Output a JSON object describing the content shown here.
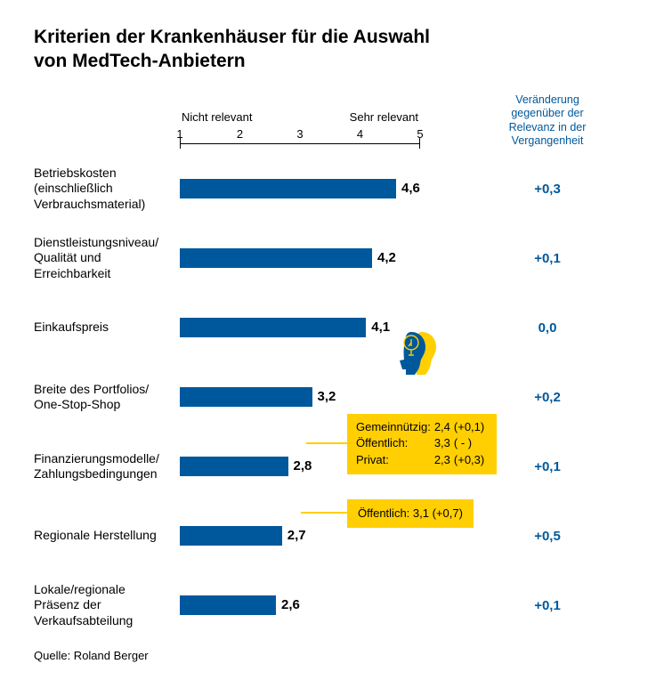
{
  "title_line1": "Kriterien der Krankenhäuser für die Auswahl",
  "title_line2": "von MedTech-Anbietern",
  "axis": {
    "left_label": "Nicht relevant",
    "right_label": "Sehr relevant",
    "min": 1,
    "max": 5,
    "ticks": [
      "1",
      "2",
      "3",
      "4",
      "5"
    ]
  },
  "change_header_l1": "Veränderung",
  "change_header_l2": "gegenüber der",
  "change_header_l3": "Relevanz in der",
  "change_header_l4": "Vergangenheit",
  "bar_color": "#00589c",
  "accent_color": "#ffcf01",
  "rows": [
    {
      "label": "Betriebskosten (einschließlich Verbrauchsmaterial)",
      "value": 4.6,
      "value_str": "4,6",
      "change": "+0,3"
    },
    {
      "label": "Dienstleistungsniveau/ Qualität und Erreichbarkeit",
      "value": 4.2,
      "value_str": "4,2",
      "change": "+0,1"
    },
    {
      "label": "Einkaufspreis",
      "value": 4.1,
      "value_str": "4,1",
      "change": "0,0"
    },
    {
      "label": "Breite des Portfolios/ One-Stop-Shop",
      "value": 3.2,
      "value_str": "3,2",
      "change": "+0,2"
    },
    {
      "label": "Finanzierungsmodelle/ Zahlungsbedingungen",
      "value": 2.8,
      "value_str": "2,8",
      "change": "+0,1"
    },
    {
      "label": "Regionale Herstellung",
      "value": 2.7,
      "value_str": "2,7",
      "change": "+0,5"
    },
    {
      "label": "Lokale/regionale Präsenz der Verkaufsabteilung",
      "value": 2.6,
      "value_str": "2,6",
      "change": "+0,1"
    }
  ],
  "callout1": {
    "rows": [
      [
        "Gemeinnützig:",
        "2,4",
        "(+0,1)"
      ],
      [
        "Öffentlich:",
        "3,3",
        "( - )"
      ],
      [
        "Privat:",
        "2,3",
        "(+0,3)"
      ]
    ]
  },
  "callout2": {
    "text": "Öffentlich: 3,1 (+0,7)"
  },
  "source": "Quelle: Roland Berger"
}
